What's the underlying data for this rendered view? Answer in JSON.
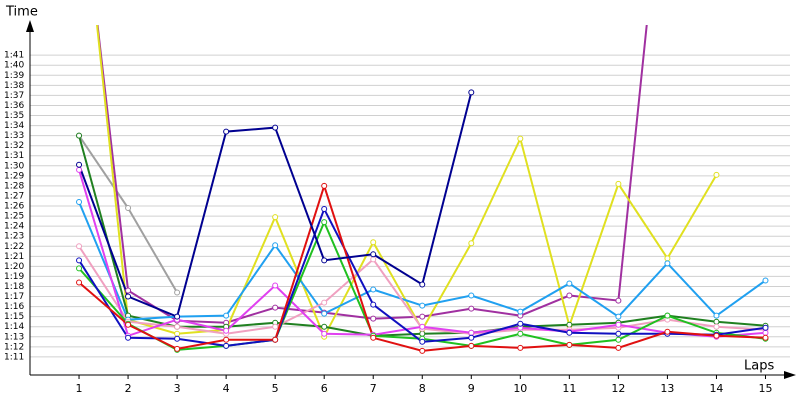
{
  "chart_data": {
    "type": "line",
    "y_label": "Time",
    "x_label": "Laps",
    "x": [
      1,
      2,
      3,
      4,
      5,
      6,
      7,
      8,
      9,
      10,
      11,
      12,
      13,
      14,
      15
    ],
    "xlim": [
      0,
      15.5
    ],
    "xticks": [
      1,
      2,
      3,
      4,
      5,
      6,
      7,
      8,
      9,
      10,
      11,
      12,
      13,
      14,
      15
    ],
    "ylim": [
      69.2,
      104
    ],
    "yticks": [
      {
        "value": 71,
        "label": "1:11"
      },
      {
        "value": 72,
        "label": "1:12"
      },
      {
        "value": 73,
        "label": "1:13"
      },
      {
        "value": 74,
        "label": "1:14"
      },
      {
        "value": 75,
        "label": "1:15"
      },
      {
        "value": 76,
        "label": "1:16"
      },
      {
        "value": 77,
        "label": "1:17"
      },
      {
        "value": 78,
        "label": "1:18"
      },
      {
        "value": 79,
        "label": "1:19"
      },
      {
        "value": 80,
        "label": "1:20"
      },
      {
        "value": 81,
        "label": "1:21"
      },
      {
        "value": 82,
        "label": "1:22"
      },
      {
        "value": 83,
        "label": "1:23"
      },
      {
        "value": 84,
        "label": "1:24"
      },
      {
        "value": 85,
        "label": "1:25"
      },
      {
        "value": 86,
        "label": "1:26"
      },
      {
        "value": 87,
        "label": "1:27"
      },
      {
        "value": 88,
        "label": "1:28"
      },
      {
        "value": 89,
        "label": "1:29"
      },
      {
        "value": 90,
        "label": "1:30"
      },
      {
        "value": 91,
        "label": "1:31"
      },
      {
        "value": 92,
        "label": "1:32"
      },
      {
        "value": 93,
        "label": "1:33"
      },
      {
        "value": 94,
        "label": "1:34"
      },
      {
        "value": 95,
        "label": "1:35"
      },
      {
        "value": 96,
        "label": "1:36"
      },
      {
        "value": 97,
        "label": "1:37"
      },
      {
        "value": 98,
        "label": "1:38"
      },
      {
        "value": 99,
        "label": "1:39"
      },
      {
        "value": 100,
        "label": "1:40"
      },
      {
        "value": 101,
        "label": "1:41"
      }
    ],
    "grid": true,
    "series": [
      {
        "color": "#a0a0a0",
        "values": [
          93.0,
          85.8,
          77.4,
          null,
          null,
          null,
          null,
          null,
          null,
          null,
          null,
          null,
          null,
          null,
          null
        ]
      },
      {
        "color": "#a030a0",
        "values": [
          120,
          77.6,
          74.6,
          74.4,
          75.9,
          75.4,
          74.8,
          75.0,
          75.8,
          75.1,
          77.1,
          76.6,
          124,
          null,
          null
        ]
      },
      {
        "color": "#e0e020",
        "values": [
          121,
          74.7,
          73.3,
          73.7,
          84.9,
          73.0,
          82.4,
          73.7,
          82.3,
          92.7,
          74.1,
          88.2,
          80.8,
          89.1,
          null
        ]
      },
      {
        "color": "#208020",
        "values": [
          93.0,
          75.1,
          74.0,
          74.0,
          74.4,
          74.0,
          73.1,
          73.3,
          73.4,
          74.0,
          74.2,
          74.4,
          75.1,
          74.5,
          74.1
        ]
      },
      {
        "color": "#20a0f0",
        "values": [
          86.4,
          74.7,
          75.0,
          75.1,
          82.1,
          75.3,
          77.7,
          76.1,
          77.1,
          75.5,
          78.3,
          75.0,
          80.3,
          75.1,
          78.6
        ]
      },
      {
        "color": "#f0a0c0",
        "values": [
          82.0,
          74.5,
          74.0,
          73.3,
          74.0,
          76.4,
          80.7,
          73.8,
          73.3,
          73.7,
          73.7,
          73.9,
          74.7,
          74.0,
          73.7
        ]
      },
      {
        "color": "#e040f0",
        "values": [
          89.6,
          73.1,
          74.7,
          73.6,
          78.1,
          73.3,
          73.2,
          74.0,
          73.4,
          73.9,
          73.5,
          74.2,
          73.4,
          73.0,
          73.4
        ]
      },
      {
        "color": "#20c020",
        "values": [
          79.8,
          74.3,
          71.7,
          72.1,
          72.7,
          84.4,
          73.1,
          72.8,
          72.1,
          73.3,
          72.2,
          72.7,
          75.1,
          73.4,
          72.8
        ]
      },
      {
        "color": "#1010c0",
        "values": [
          80.6,
          72.9,
          72.8,
          72.1,
          72.7,
          85.7,
          76.2,
          72.5,
          72.9,
          74.3,
          73.4,
          73.3,
          73.3,
          73.2,
          73.9
        ]
      },
      {
        "color": "#e01010",
        "values": [
          78.4,
          74.2,
          71.8,
          72.7,
          72.7,
          88.0,
          72.9,
          71.6,
          72.1,
          71.9,
          72.2,
          71.9,
          73.5,
          73.1,
          72.9
        ]
      },
      {
        "color": "#000090",
        "values": [
          90.1,
          77.0,
          75.0,
          93.4,
          93.8,
          80.6,
          81.2,
          78.2,
          97.3,
          null,
          null,
          null,
          null,
          null,
          null
        ]
      }
    ]
  }
}
